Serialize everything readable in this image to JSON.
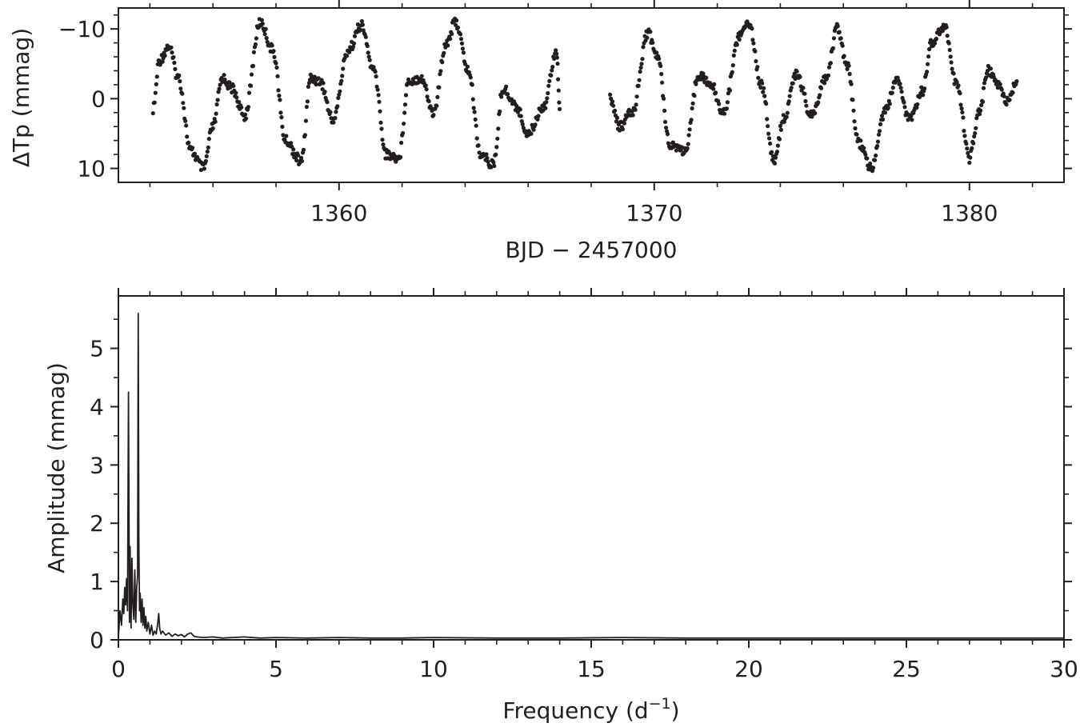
{
  "chart_data": [
    {
      "type": "scatter",
      "xlabel": "BJD − 2457000",
      "ylabel": "ΔTp (mmag)",
      "xlim": [
        1353.0,
        1383.0
      ],
      "ylim": [
        12.0,
        -13.0
      ],
      "y_inverted": true,
      "xticks": [
        1360,
        1370,
        1380
      ],
      "xtick_labels": [
        "1360",
        "1370",
        "1380"
      ],
      "yticks": [
        -10,
        0,
        10
      ],
      "ytick_labels": [
        "−10",
        "0",
        "10"
      ],
      "grid": false,
      "legend": "none",
      "marker_color": "#231f20",
      "segments": [
        {
          "x": [
            1354.1,
            1354.3,
            1354.6,
            1354.9,
            1355.3,
            1355.7,
            1356.0,
            1356.3,
            1356.6,
            1357.0,
            1357.5,
            1357.9,
            1358.3,
            1358.8,
            1359.1,
            1359.4,
            1359.8,
            1360.3,
            1360.7,
            1361.1,
            1361.5,
            1361.9,
            1362.2,
            1362.6,
            1363.0,
            1363.4,
            1363.7,
            1364.1,
            1364.5,
            1364.9,
            1365.2,
            1365.6,
            1366.0,
            1366.5,
            1366.9,
            1367.0
          ],
          "y": [
            1.5,
            -5.5,
            -7.5,
            -3.0,
            7.5,
            10.0,
            4.0,
            -3.0,
            -1.5,
            2.5,
            -11.0,
            -7.0,
            6.0,
            9.0,
            -3.0,
            -2.5,
            3.0,
            -7.0,
            -10.5,
            -4.0,
            8.0,
            8.5,
            -2.5,
            -3.0,
            2.0,
            -8.0,
            -11.0,
            -4.0,
            8.0,
            9.5,
            -1.5,
            1.0,
            5.0,
            1.0,
            -7.0,
            1.5
          ]
        },
        {
          "x": [
            1368.6,
            1368.9,
            1369.3,
            1369.8,
            1370.1,
            1370.5,
            1371.0,
            1371.4,
            1371.8,
            1372.2,
            1372.7,
            1373.0,
            1373.4,
            1373.8,
            1374.1,
            1374.5,
            1375.0,
            1375.5,
            1375.8,
            1376.1,
            1376.5,
            1376.9,
            1377.3,
            1377.7,
            1378.1,
            1378.5,
            1378.8,
            1379.2,
            1379.6,
            1380.0,
            1380.3,
            1380.6,
            1380.9,
            1381.2,
            1381.5
          ],
          "y": [
            0.0,
            4.0,
            2.0,
            -9.5,
            -6.0,
            6.5,
            7.5,
            -3.5,
            -2.0,
            2.0,
            -9.0,
            -11.0,
            -2.0,
            9.0,
            3.0,
            -3.5,
            2.5,
            -3.5,
            -10.5,
            -5.0,
            6.5,
            10.0,
            2.0,
            -2.5,
            3.0,
            -1.0,
            -8.0,
            -10.5,
            -2.0,
            8.5,
            2.0,
            -4.0,
            -2.0,
            0.5,
            -2.5
          ]
        }
      ]
    },
    {
      "type": "line",
      "xlabel": "Frequency (d",
      "xlabel_sup": "−1",
      "xlabel_close": ")",
      "ylabel": "Amplitude (mmag)",
      "xlim": [
        0,
        30
      ],
      "ylim": [
        0,
        5.9
      ],
      "xticks": [
        0,
        5,
        10,
        15,
        20,
        25,
        30
      ],
      "xtick_labels": [
        "0",
        "5",
        "10",
        "15",
        "20",
        "25",
        "30"
      ],
      "yticks": [
        0,
        1,
        2,
        3,
        4,
        5
      ],
      "ytick_labels": [
        "0",
        "1",
        "2",
        "3",
        "4",
        "5"
      ],
      "grid": false,
      "legend": "none",
      "line_color": "#231f20",
      "x": [
        0.0,
        0.05,
        0.1,
        0.14,
        0.17,
        0.2,
        0.23,
        0.26,
        0.29,
        0.32,
        0.35,
        0.37,
        0.4,
        0.43,
        0.46,
        0.49,
        0.52,
        0.55,
        0.58,
        0.61,
        0.63,
        0.65,
        0.67,
        0.69,
        0.72,
        0.75,
        0.78,
        0.81,
        0.84,
        0.87,
        0.9,
        0.95,
        1.0,
        1.05,
        1.1,
        1.15,
        1.2,
        1.25,
        1.28,
        1.31,
        1.35,
        1.4,
        1.5,
        1.6,
        1.7,
        1.8,
        1.9,
        2.0,
        2.1,
        2.2,
        2.3,
        2.4,
        2.5,
        2.7,
        3.0,
        3.3,
        3.6,
        4.0,
        4.5,
        5.0,
        6.0,
        7.0,
        8.0,
        9.0,
        10.0,
        12.0,
        14.0,
        16.0,
        18.0,
        20.0,
        22.0,
        24.0,
        26.0,
        28.0,
        30.0
      ],
      "y": [
        0.05,
        0.5,
        0.25,
        0.7,
        0.45,
        0.9,
        0.6,
        1.05,
        0.5,
        4.25,
        0.3,
        1.6,
        0.2,
        1.4,
        0.6,
        0.35,
        1.2,
        0.3,
        0.9,
        1.1,
        5.6,
        1.6,
        0.5,
        0.8,
        0.3,
        0.7,
        0.25,
        0.55,
        0.2,
        0.4,
        0.15,
        0.3,
        0.1,
        0.25,
        0.08,
        0.15,
        0.1,
        0.3,
        0.45,
        0.2,
        0.1,
        0.15,
        0.08,
        0.12,
        0.06,
        0.1,
        0.07,
        0.09,
        0.05,
        0.1,
        0.12,
        0.06,
        0.05,
        0.04,
        0.05,
        0.03,
        0.04,
        0.05,
        0.03,
        0.04,
        0.03,
        0.04,
        0.03,
        0.03,
        0.04,
        0.03,
        0.03,
        0.04,
        0.03,
        0.03,
        0.03,
        0.03,
        0.03,
        0.03,
        0.03
      ]
    }
  ]
}
